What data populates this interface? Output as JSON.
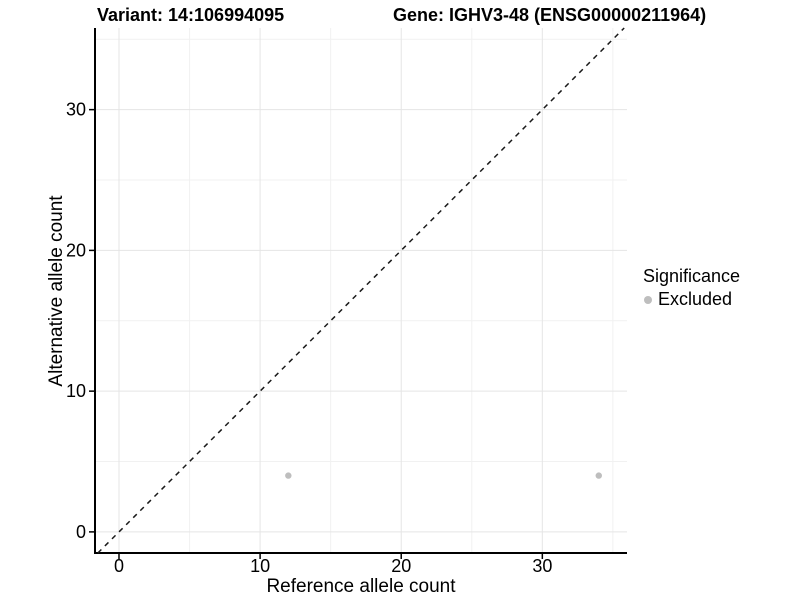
{
  "chart_data": {
    "type": "scatter",
    "title_left": "Variant: 14:106994095",
    "title_right": "Gene: IGHV3-48 (ENSG00000211964)",
    "xlabel": "Reference allele count",
    "ylabel": "Alternative allele count",
    "xlim": [
      -1.7,
      36.0
    ],
    "ylim": [
      -1.5,
      35.8
    ],
    "xticks": [
      0,
      10,
      20,
      30
    ],
    "yticks": [
      0,
      10,
      20,
      30
    ],
    "xminor": [
      5,
      15,
      25,
      35
    ],
    "yminor": [
      5,
      15,
      25,
      35
    ],
    "grid": true,
    "identity_line": {
      "style": "dashed",
      "slope": 1,
      "intercept": 0
    },
    "series": [
      {
        "name": "Excluded",
        "color": "#bebebe",
        "points": [
          [
            12,
            4
          ],
          [
            34,
            4
          ]
        ]
      }
    ],
    "legend": {
      "position": "right",
      "title": "Significance",
      "items": [
        {
          "label": "Excluded",
          "color": "#bebebe"
        }
      ]
    },
    "colors": {
      "point": "#bebebe",
      "identity_line": "#1a1a1a",
      "grid_major": "#e5e5e5",
      "grid_minor": "#f1f1f1",
      "axis_line": "#000000",
      "text": "#000000"
    }
  }
}
